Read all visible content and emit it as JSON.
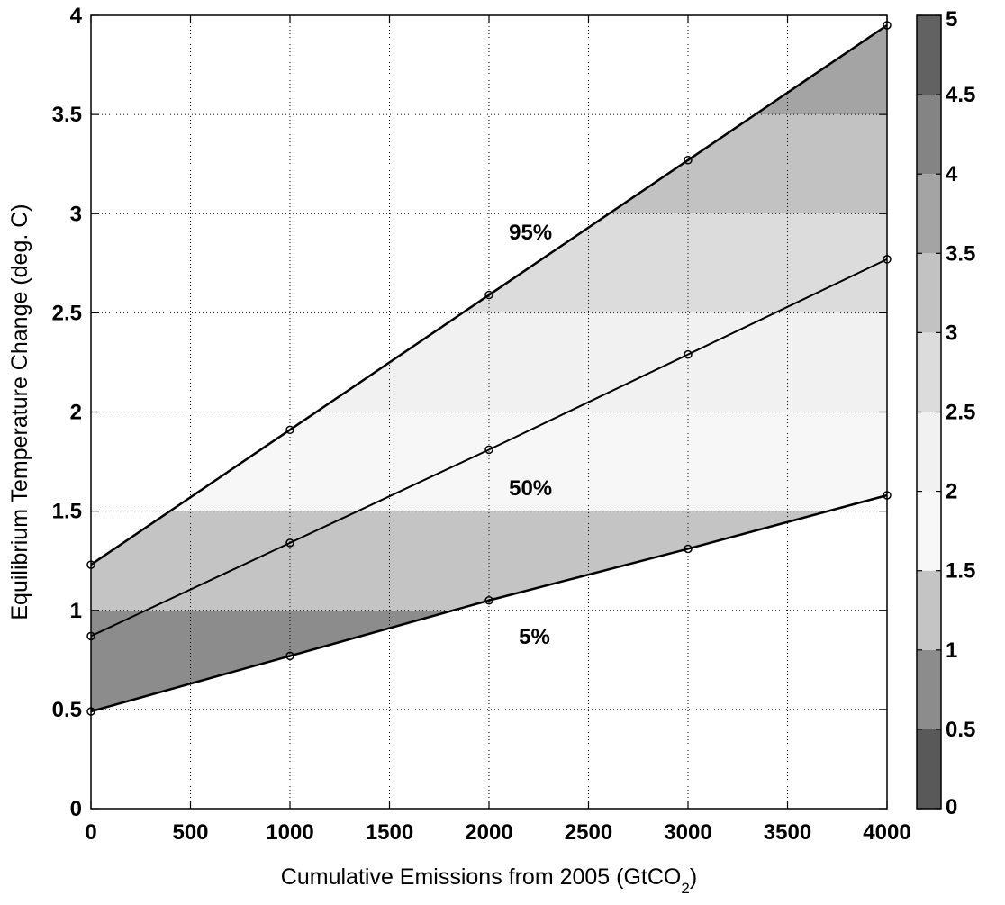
{
  "chart_data": {
    "type": "line",
    "title": "",
    "xlabel": "Cumulative Emissions from 2005 (GtCO",
    "xlabel_subscript": "2",
    "xlabel_suffix": ")",
    "ylabel": "Equilibrium Temperature Change (deg. C)",
    "xlim": [
      0,
      4000
    ],
    "ylim": [
      0,
      4
    ],
    "x_ticks": [
      0,
      500,
      1000,
      1500,
      2000,
      2500,
      3000,
      3500,
      4000
    ],
    "y_ticks": [
      0,
      0.5,
      1,
      1.5,
      2,
      2.5,
      3,
      3.5,
      4
    ],
    "x_tick_labels": [
      "0",
      "500",
      "1000",
      "1500",
      "2000",
      "2500",
      "3000",
      "3500",
      "4000"
    ],
    "y_tick_labels": [
      "0",
      "0.5",
      "1",
      "1.5",
      "2",
      "2.5",
      "3",
      "3.5",
      "4"
    ],
    "grid": true,
    "x": [
      0,
      1000,
      2000,
      3000,
      4000
    ],
    "series": [
      {
        "name": "5%",
        "values": [
          0.49,
          0.77,
          1.05,
          1.31,
          1.58
        ]
      },
      {
        "name": "50%",
        "values": [
          0.87,
          1.34,
          1.81,
          2.29,
          2.77
        ]
      },
      {
        "name": "95%",
        "values": [
          1.23,
          1.91,
          2.59,
          3.27,
          3.95
        ]
      }
    ],
    "annotations": [
      {
        "text": "95%",
        "x": 2100,
        "y": 2.87
      },
      {
        "text": "50%",
        "x": 2100,
        "y": 1.58
      },
      {
        "text": "5%",
        "x": 2150,
        "y": 0.83
      }
    ],
    "fill_between": {
      "lower": "5%",
      "upper": "95%",
      "colored_by": "y"
    },
    "colorbar": {
      "range": [
        0,
        5
      ],
      "ticks": [
        0,
        0.5,
        1,
        1.5,
        2,
        2.5,
        3,
        3.5,
        4,
        4.5,
        5
      ],
      "tick_labels": [
        "0",
        "0.5",
        "1",
        "1.5",
        "2",
        "2.5",
        "3",
        "3.5",
        "4",
        "4.5",
        "5"
      ],
      "bands": [
        {
          "from": 0,
          "to": 0.5,
          "color": "#595959"
        },
        {
          "from": 0.5,
          "to": 1,
          "color": "#8c8c8c"
        },
        {
          "from": 1,
          "to": 1.5,
          "color": "#c4c4c4"
        },
        {
          "from": 1.5,
          "to": 2,
          "color": "#f7f7f7"
        },
        {
          "from": 2,
          "to": 2.5,
          "color": "#f1f1f1"
        },
        {
          "from": 2.5,
          "to": 3,
          "color": "#dcdcdc"
        },
        {
          "from": 3,
          "to": 3.5,
          "color": "#c2c2c2"
        },
        {
          "from": 3.5,
          "to": 4,
          "color": "#a4a4a4"
        },
        {
          "from": 4,
          "to": 4.5,
          "color": "#848484"
        },
        {
          "from": 4.5,
          "to": 5,
          "color": "#626262"
        }
      ]
    },
    "line_color": "#000000",
    "grid_color": "#000000"
  }
}
